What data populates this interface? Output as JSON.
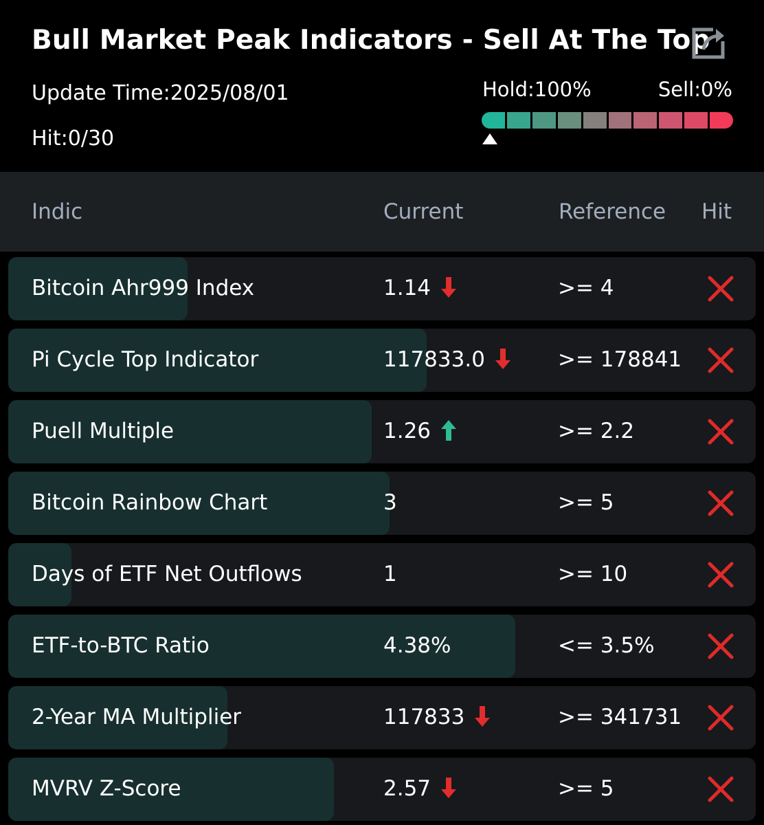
{
  "header": {
    "title": "Bull Market Peak Indicators - Sell At The Top",
    "update_time": "Update Time:2025/08/01",
    "hit_count": "Hit:0/30",
    "hold_label": "Hold:100%",
    "sell_label": "Sell:0%",
    "share_icon": "share-icon",
    "gauge": {
      "hold_fraction": 1.0,
      "segments": [
        "#22b59a",
        "#38a68d",
        "#4e9883",
        "#6a8f7f",
        "#85807d",
        "#a2727a",
        "#ba6474",
        "#cf5670",
        "#de4a66",
        "#f23b58"
      ]
    }
  },
  "columns": {
    "indicator": "Indic",
    "current": "Current",
    "reference": "Reference",
    "hit": "Hit"
  },
  "colors": {
    "down": "#e22d2d",
    "up": "#2ebc96",
    "miss": "#e02a2a",
    "bar": "#17302f",
    "row_bg": "#17191c"
  },
  "rows": [
    {
      "name": "Bitcoin Ahr999 Index",
      "current": "1.14",
      "trend": "down",
      "reference": ">= 4",
      "hit": false,
      "progress": 0.24
    },
    {
      "name": "Pi Cycle Top Indicator",
      "current": "117833.0",
      "trend": "down",
      "reference": ">= 178841",
      "hit": false,
      "progress": 0.56
    },
    {
      "name": "Puell Multiple",
      "current": "1.26",
      "trend": "up",
      "reference": ">= 2.2",
      "hit": false,
      "progress": 0.486
    },
    {
      "name": "Bitcoin Rainbow Chart",
      "current": "3",
      "trend": "",
      "reference": ">= 5",
      "hit": false,
      "progress": 0.51
    },
    {
      "name": "Days of ETF Net Outflows",
      "current": "1",
      "trend": "",
      "reference": ">= 10",
      "hit": false,
      "progress": 0.085
    },
    {
      "name": "ETF-to-BTC Ratio",
      "current": "4.38%",
      "trend": "",
      "reference": "<= 3.5%",
      "hit": false,
      "progress": 0.678
    },
    {
      "name": "2-Year MA Multiplier",
      "current": "117833",
      "trend": "down",
      "reference": ">= 341731",
      "hit": false,
      "progress": 0.293
    },
    {
      "name": "MVRV Z-Score",
      "current": "2.57",
      "trend": "down",
      "reference": ">= 5",
      "hit": false,
      "progress": 0.436
    }
  ]
}
